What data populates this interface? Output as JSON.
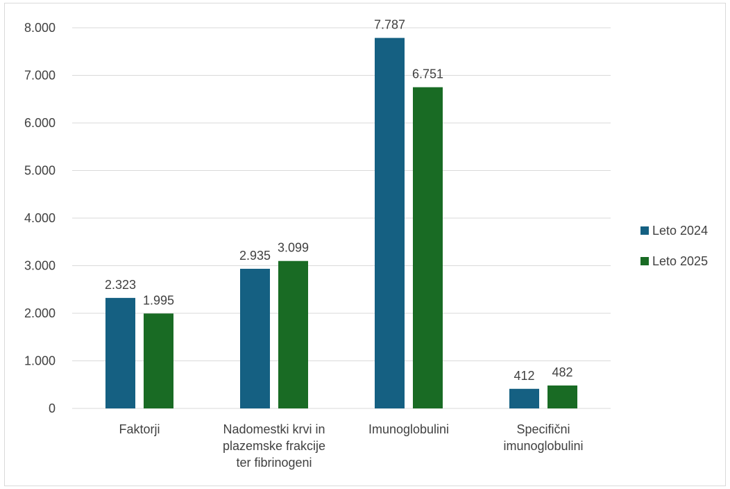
{
  "chart_data": {
    "type": "bar",
    "title": "",
    "xlabel": "",
    "ylabel": "",
    "categories": [
      [
        "Faktorji"
      ],
      [
        "Nadomestki krvi in",
        "plazemske frakcije",
        "ter fibrinogeni"
      ],
      [
        "Imunoglobulini"
      ],
      [
        "Specifični",
        "imunoglobulini"
      ]
    ],
    "series": [
      {
        "name": "Leto 2024",
        "color": "#156082",
        "values": [
          2323,
          2935,
          7787,
          412
        ],
        "labels": [
          "2.323",
          "2.935",
          "7.787",
          "412"
        ]
      },
      {
        "name": "Leto 2025",
        "color": "#196b24",
        "values": [
          1995,
          3099,
          6751,
          482
        ],
        "labels": [
          "1.995",
          "3.099",
          "6.751",
          "482"
        ]
      }
    ],
    "ylim": [
      0,
      8000
    ],
    "yticks": [
      0,
      1000,
      2000,
      3000,
      4000,
      5000,
      6000,
      7000,
      8000
    ],
    "ytick_labels": [
      "0",
      "1.000",
      "2.000",
      "3.000",
      "4.000",
      "5.000",
      "6.000",
      "7.000",
      "8.000"
    ],
    "grid": true,
    "legend_position": "right"
  }
}
